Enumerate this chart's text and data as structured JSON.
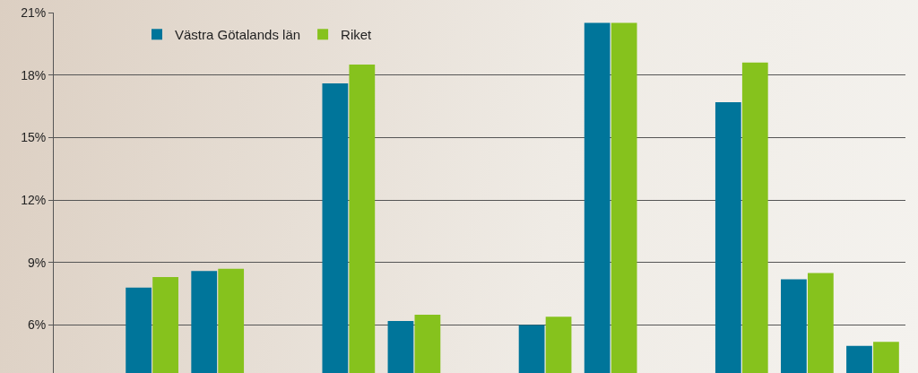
{
  "chart_data": {
    "type": "bar",
    "categories": [
      null,
      null,
      null,
      null,
      null,
      null,
      null,
      null,
      null,
      null,
      null,
      null,
      null
    ],
    "series": [
      {
        "name": "Västra Götalands län",
        "color": "#00759a",
        "values": [
          null,
          7.8,
          8.6,
          null,
          17.6,
          6.2,
          null,
          6.0,
          20.5,
          null,
          16.7,
          8.2,
          5.0
        ]
      },
      {
        "name": "Riket",
        "color": "#86c21d",
        "values": [
          null,
          8.3,
          8.7,
          null,
          18.5,
          6.5,
          null,
          6.4,
          20.5,
          null,
          18.6,
          8.5,
          5.2
        ]
      }
    ],
    "ylim": [
      3.7,
      21
    ],
    "yticks": [
      {
        "value": 6,
        "label": "6%"
      },
      {
        "value": 9,
        "label": "9%"
      },
      {
        "value": 12,
        "label": "12%"
      },
      {
        "value": 15,
        "label": "15%"
      },
      {
        "value": 18,
        "label": "18%"
      },
      {
        "value": 21,
        "label": "21%"
      }
    ],
    "grid": "y",
    "legend": "top left"
  }
}
